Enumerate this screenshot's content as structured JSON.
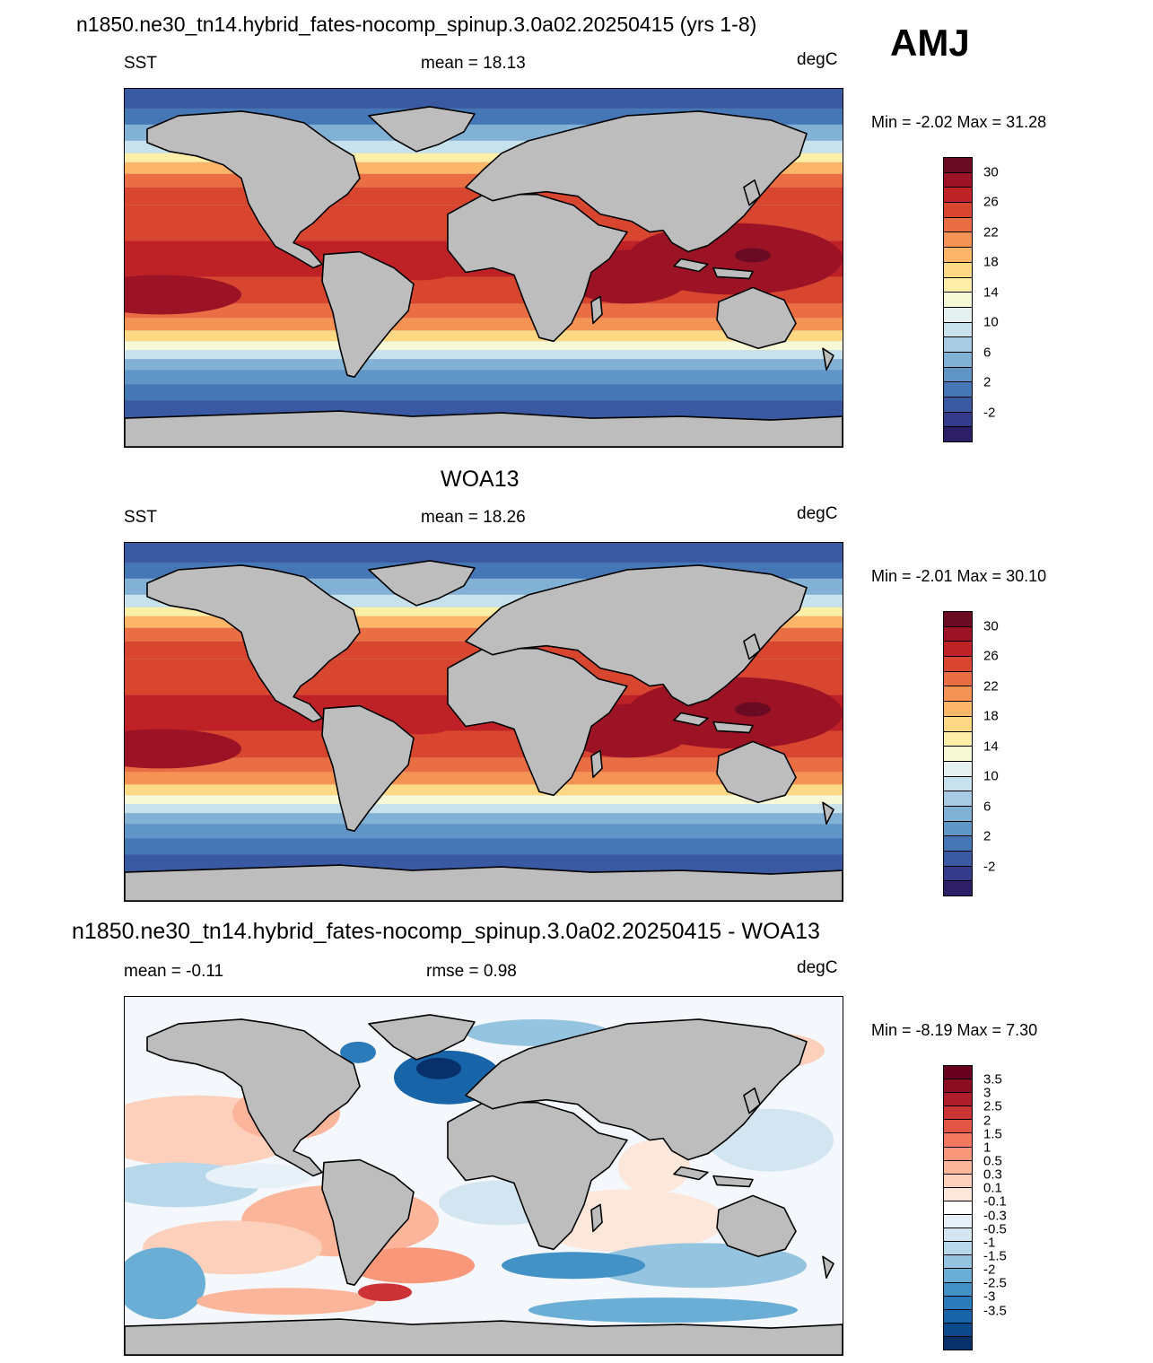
{
  "header": {
    "title": "n1850.ne30_tn14.hybrid_fates-nocomp_spinup.3.0a02.20250415 (yrs 1-8)",
    "season": "AMJ"
  },
  "panels": [
    {
      "id": "model",
      "title": "",
      "left_label": "SST",
      "center_label": "mean =  18.13",
      "units": "degC",
      "minmax": "Min =  -2.02 Max =  31.28",
      "kind": "sst",
      "colorbar": {
        "colors": [
          "#2c1f66",
          "#353b8a",
          "#3a59a3",
          "#4577b6",
          "#5f95c7",
          "#82b1d6",
          "#a6cbe3",
          "#c7e1ed",
          "#e5f0f1",
          "#f7f8d6",
          "#fdeea8",
          "#fdd885",
          "#fbb66a",
          "#f59355",
          "#ea6e44",
          "#d9462f",
          "#bf2226",
          "#9c1326",
          "#6a0a23"
        ],
        "labels": [
          "30",
          "26",
          "22",
          "18",
          "14",
          "10",
          "6",
          "2",
          "-2"
        ]
      }
    },
    {
      "id": "obs",
      "title": "WOA13",
      "left_label": "SST",
      "center_label": "mean =  18.26",
      "units": "degC",
      "minmax": "Min =  -2.01 Max =  30.10",
      "kind": "sst",
      "colorbar": {
        "colors": [
          "#2c1f66",
          "#353b8a",
          "#3a59a3",
          "#4577b6",
          "#5f95c7",
          "#82b1d6",
          "#a6cbe3",
          "#c7e1ed",
          "#e5f0f1",
          "#f7f8d6",
          "#fdeea8",
          "#fdd885",
          "#fbb66a",
          "#f59355",
          "#ea6e44",
          "#d9462f",
          "#bf2226",
          "#9c1326",
          "#6a0a23"
        ],
        "labels": [
          "30",
          "26",
          "22",
          "18",
          "14",
          "10",
          "6",
          "2",
          "-2"
        ]
      }
    },
    {
      "id": "diff",
      "title": "n1850.ne30_tn14.hybrid_fates-nocomp_spinup.3.0a02.20250415 - WOA13",
      "left_label": "mean =  -0.11",
      "center_label": "rmse =   0.98",
      "units": "degC",
      "minmax": "Min =  -8.19 Max =   7.30",
      "kind": "diff",
      "colorbar": {
        "colors": [
          "#08306b",
          "#0d4a8c",
          "#1764a8",
          "#2b7bba",
          "#4292c6",
          "#6aaed6",
          "#94c4df",
          "#b7d7ea",
          "#d3e5f1",
          "#e8f1f8",
          "#ffffff",
          "#fde6da",
          "#fcd0bb",
          "#fbb59a",
          "#f9977b",
          "#f2795f",
          "#e35646",
          "#cc3337",
          "#af1d2b",
          "#8a0d22",
          "#67001f"
        ],
        "labels": [
          "3.5",
          "3",
          "2.5",
          "2",
          "1.5",
          "1",
          "0.5",
          "0.3",
          "0.1",
          "-0.1",
          "-0.3",
          "-0.5",
          "-1",
          "-1.5",
          "-2",
          "-2.5",
          "-3",
          "-3.5"
        ]
      }
    }
  ]
}
